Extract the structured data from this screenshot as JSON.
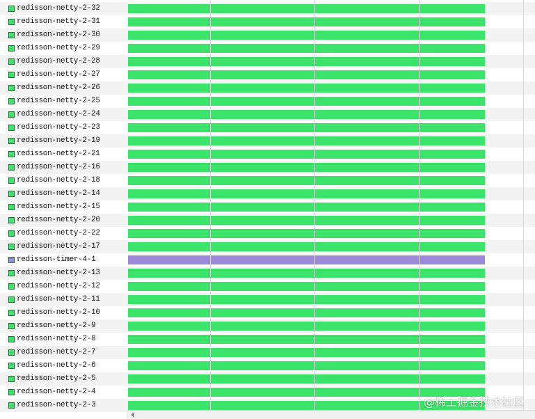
{
  "threads": [
    {
      "name": "redisson-netty-2-32",
      "color": "#3be36a"
    },
    {
      "name": "redisson-netty-2-31",
      "color": "#3be36a"
    },
    {
      "name": "redisson-netty-2-30",
      "color": "#3be36a"
    },
    {
      "name": "redisson-netty-2-29",
      "color": "#3be36a"
    },
    {
      "name": "redisson-netty-2-28",
      "color": "#3be36a"
    },
    {
      "name": "redisson-netty-2-27",
      "color": "#3be36a"
    },
    {
      "name": "redisson-netty-2-26",
      "color": "#3be36a"
    },
    {
      "name": "redisson-netty-2-25",
      "color": "#3be36a"
    },
    {
      "name": "redisson-netty-2-24",
      "color": "#3be36a"
    },
    {
      "name": "redisson-netty-2-23",
      "color": "#3be36a"
    },
    {
      "name": "redisson-netty-2-19",
      "color": "#3be36a"
    },
    {
      "name": "redisson-netty-2-21",
      "color": "#3be36a"
    },
    {
      "name": "redisson-netty-2-16",
      "color": "#3be36a"
    },
    {
      "name": "redisson-netty-2-18",
      "color": "#3be36a"
    },
    {
      "name": "redisson-netty-2-14",
      "color": "#3be36a"
    },
    {
      "name": "redisson-netty-2-15",
      "color": "#3be36a"
    },
    {
      "name": "redisson-netty-2-20",
      "color": "#3be36a"
    },
    {
      "name": "redisson-netty-2-22",
      "color": "#3be36a"
    },
    {
      "name": "redisson-netty-2-17",
      "color": "#3be36a"
    },
    {
      "name": "redisson-timer-4-1",
      "color": "#9b8ad8"
    },
    {
      "name": "redisson-netty-2-13",
      "color": "#3be36a"
    },
    {
      "name": "redisson-netty-2-12",
      "color": "#3be36a"
    },
    {
      "name": "redisson-netty-2-11",
      "color": "#3be36a"
    },
    {
      "name": "redisson-netty-2-10",
      "color": "#3be36a"
    },
    {
      "name": "redisson-netty-2-9",
      "color": "#3be36a"
    },
    {
      "name": "redisson-netty-2-8",
      "color": "#3be36a"
    },
    {
      "name": "redisson-netty-2-7",
      "color": "#3be36a"
    },
    {
      "name": "redisson-netty-2-6",
      "color": "#3be36a"
    },
    {
      "name": "redisson-netty-2-5",
      "color": "#3be36a"
    },
    {
      "name": "redisson-netty-2-4",
      "color": "#3be36a"
    },
    {
      "name": "redisson-netty-2-3",
      "color": "#3be36a"
    }
  ],
  "watermark": "@稀土掘金技术社区"
}
